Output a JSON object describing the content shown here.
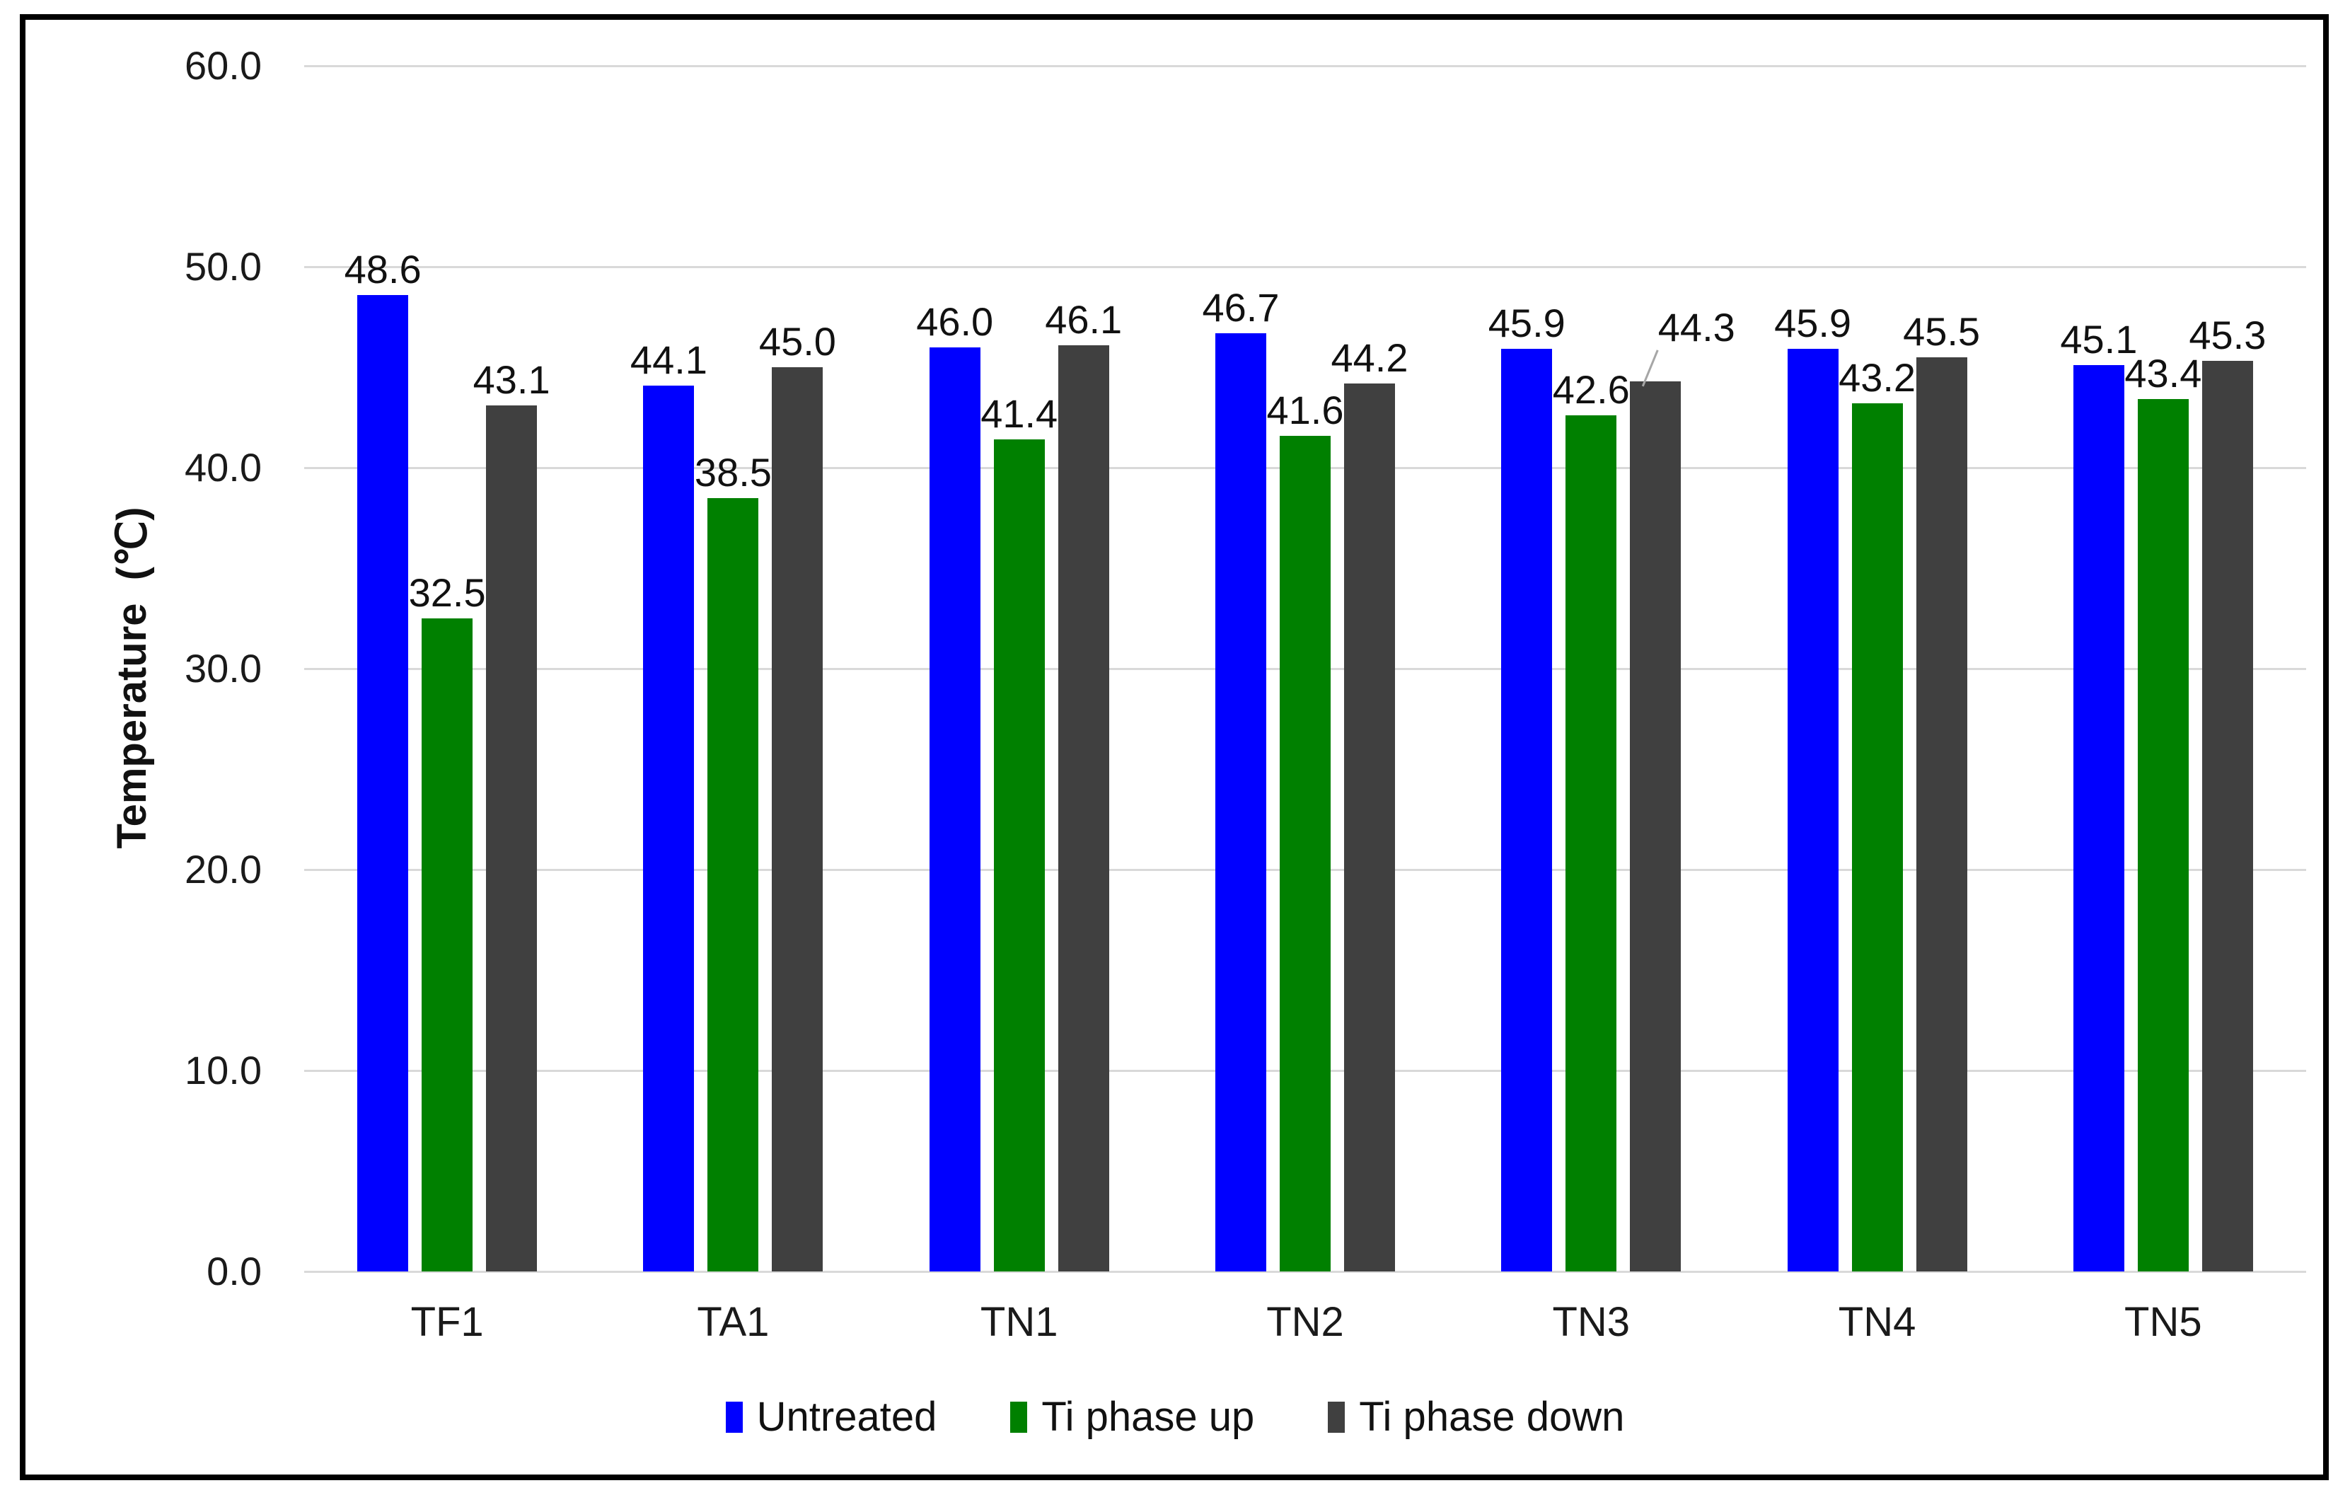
{
  "chart_data": {
    "type": "bar",
    "title": "",
    "categories": [
      "TF1",
      "TA1",
      "TN1",
      "TN2",
      "TN3",
      "TN4",
      "TN5"
    ],
    "series": [
      {
        "name": "Untreated",
        "color": "#0000FF",
        "values": [
          48.6,
          44.1,
          46.0,
          46.7,
          45.9,
          45.9,
          45.1
        ]
      },
      {
        "name": "Ti phase up",
        "color": "#008000",
        "values": [
          32.5,
          38.5,
          41.4,
          41.6,
          42.6,
          43.2,
          43.4
        ]
      },
      {
        "name": "Ti phase down",
        "color": "#404040",
        "values": [
          43.1,
          45.0,
          46.1,
          44.2,
          44.3,
          45.5,
          45.3
        ]
      }
    ],
    "xlabel": "",
    "ylabel": "Temperature  (℃)",
    "ylim": [
      0,
      60
    ],
    "ytick_step": 10,
    "ytick_labels": [
      "0.0",
      "10.0",
      "20.0",
      "30.0",
      "40.0",
      "50.0",
      "60.0"
    ],
    "grid": true,
    "gridline_color": "#d9d9d9",
    "data_labels": true,
    "label_decimals": 1,
    "legend_position": "bottom",
    "moved_label": {
      "category": "TN3",
      "series": "Ti phase down",
      "leader_line": true,
      "leader_color": "#a6a6a6"
    }
  },
  "colors": {
    "background": "#ffffff",
    "frame_border": "#000000",
    "text": "#111111"
  }
}
